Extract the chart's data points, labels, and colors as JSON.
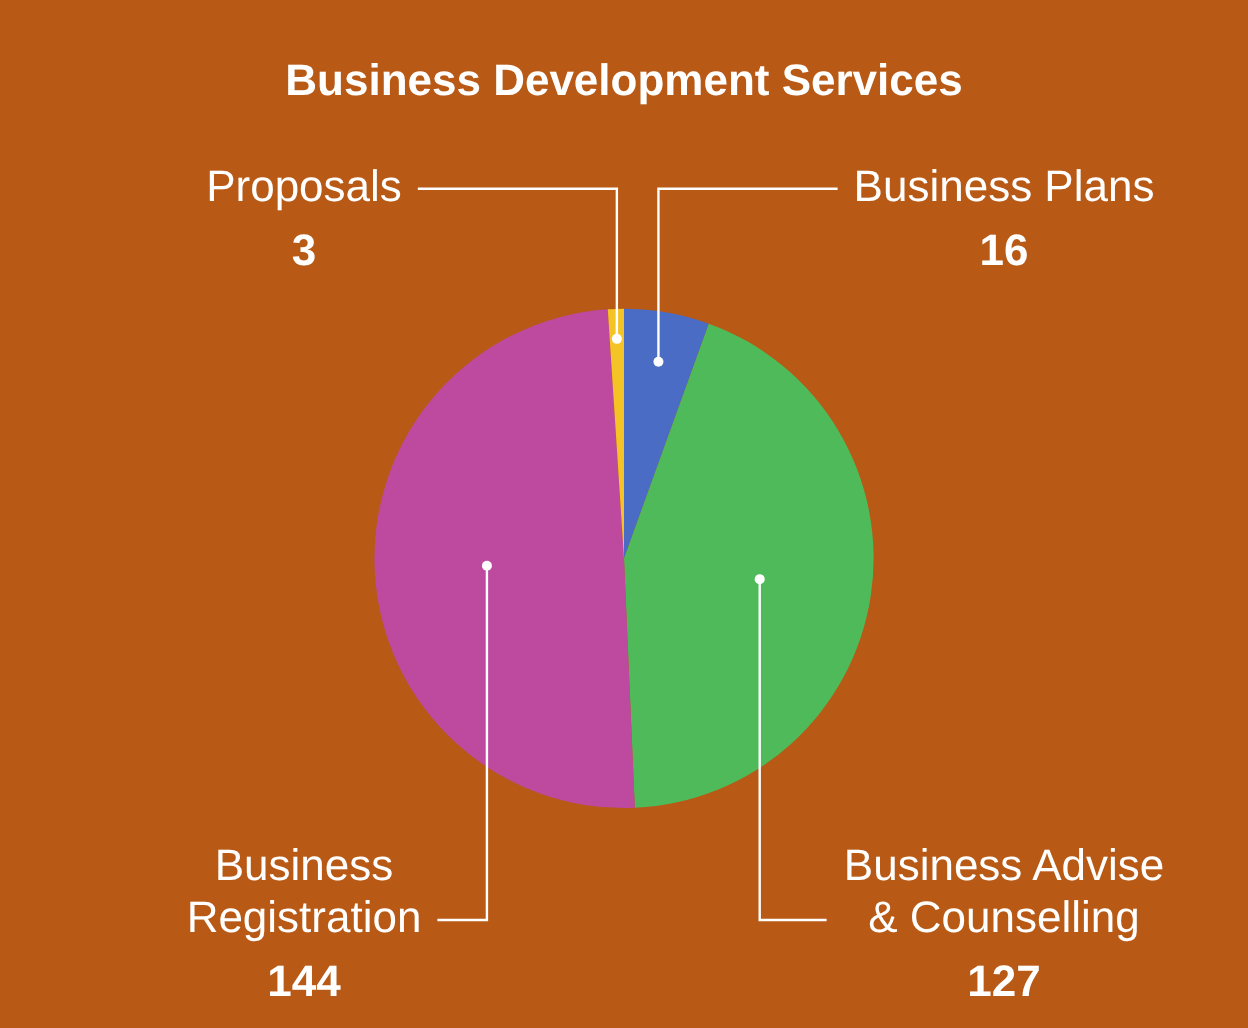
{
  "chart_data": {
    "type": "pie",
    "title": "Business Development Services",
    "categories": [
      "Business Plans",
      "Business Advise & Counselling",
      "Business Registration",
      "Proposals"
    ],
    "values": [
      16,
      127,
      144,
      3
    ],
    "colors": [
      "#4a6cc4",
      "#4fba5a",
      "#bd4a9e",
      "#f4c427"
    ],
    "data_labels": true,
    "legend": false
  }
}
